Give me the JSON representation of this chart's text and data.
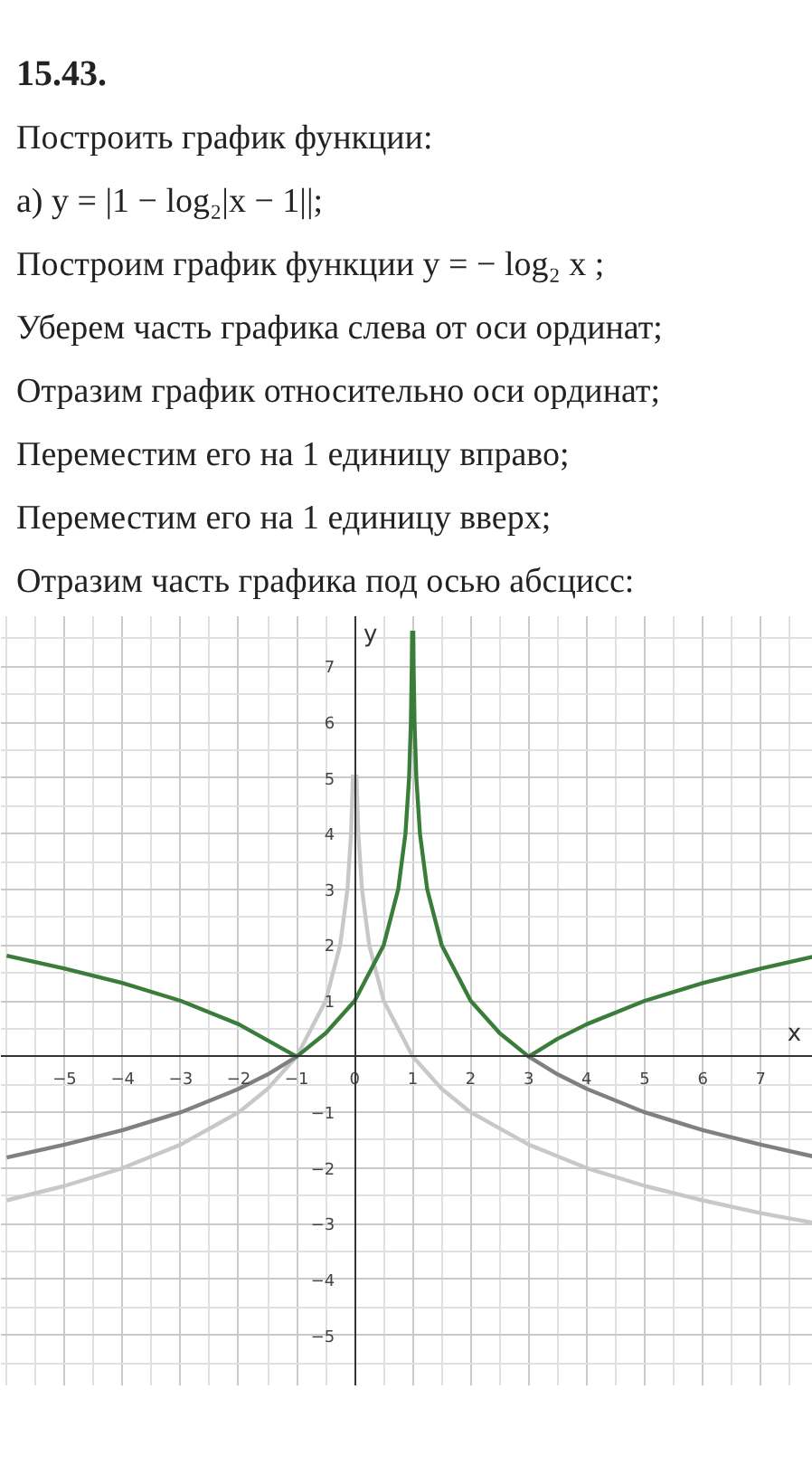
{
  "chart_data": {
    "type": "line",
    "title": "15.43.",
    "annotations": [
      "Построить график функции:",
      "а) y = |1 − log₂|x − 1||;",
      "Построим график функции y = − log₂ x ;",
      "Уберем часть графика слева от оси ординат;",
      "Отразим график относительно оси ординат;",
      "Переместим его на 1 единицу вправо;",
      "Переместим его на 1 единицу вверх;",
      "Отразим часть графика под осью абсцисс:"
    ],
    "xlabel": "x",
    "ylabel": "y",
    "xlim": [
      -6.1,
      7.9
    ],
    "ylim": [
      -5.9,
      7.9
    ],
    "xticks": [
      -5,
      -4,
      -3,
      -2,
      -1,
      0,
      1,
      2,
      3,
      4,
      5,
      6,
      7
    ],
    "yticks": [
      -5,
      -4,
      -3,
      -2,
      -1,
      1,
      2,
      3,
      4,
      5,
      6,
      7
    ],
    "grid": true,
    "line_style": "solid",
    "marker": "none",
    "series": [
      {
        "color": "#c8c8c8",
        "x": [
          -6,
          -5,
          -4,
          -3,
          -2,
          -1.5,
          -1,
          -0.5,
          -0.25,
          -0.125,
          -0.0625,
          -0.03,
          0,
          0.03,
          0.0625,
          0.125,
          0.25,
          0.5,
          1,
          1.5,
          2,
          3,
          4,
          5,
          6,
          7,
          7.9
        ],
        "values": [
          -2.58,
          -2.32,
          -2,
          -1.58,
          -1,
          -0.58,
          0,
          1,
          2,
          3,
          4,
          5.06,
          null,
          5.06,
          4,
          3,
          2,
          1,
          0,
          -0.58,
          -1,
          -1.58,
          -2,
          -2.32,
          -2.58,
          -2.81,
          -2.98
        ]
      },
      {
        "color": "#808080",
        "x": [
          -6,
          -5,
          -4,
          -3,
          -2,
          -1.5,
          -1,
          1,
          3,
          3.5,
          4,
          5,
          6,
          7,
          7.9
        ],
        "values": [
          -1.81,
          -1.58,
          -1.32,
          -1,
          -0.58,
          -0.32,
          0,
          null,
          0,
          -0.32,
          -0.58,
          -1,
          -1.32,
          -1.58,
          -1.79
        ]
      },
      {
        "color": "#3a7d3a",
        "x": [
          -6,
          -5,
          -4,
          -3,
          -2,
          -1,
          -0.5,
          0,
          0.5,
          0.75,
          0.875,
          0.9375,
          0.96875,
          0.984375,
          0.99,
          1,
          1.01,
          1.015625,
          1.03125,
          1.0625,
          1.125,
          1.25,
          1.5,
          2,
          2.5,
          3,
          3.5,
          4,
          5,
          6,
          7,
          7.9
        ],
        "values": [
          1.81,
          1.58,
          1.32,
          1,
          0.58,
          0,
          0.42,
          1,
          2,
          3,
          4,
          5,
          6,
          7,
          7.64,
          null,
          7.64,
          7,
          6,
          5,
          4,
          3,
          2,
          1,
          0.42,
          0,
          0.32,
          0.58,
          1,
          1.32,
          1.58,
          1.79
        ]
      }
    ]
  }
}
